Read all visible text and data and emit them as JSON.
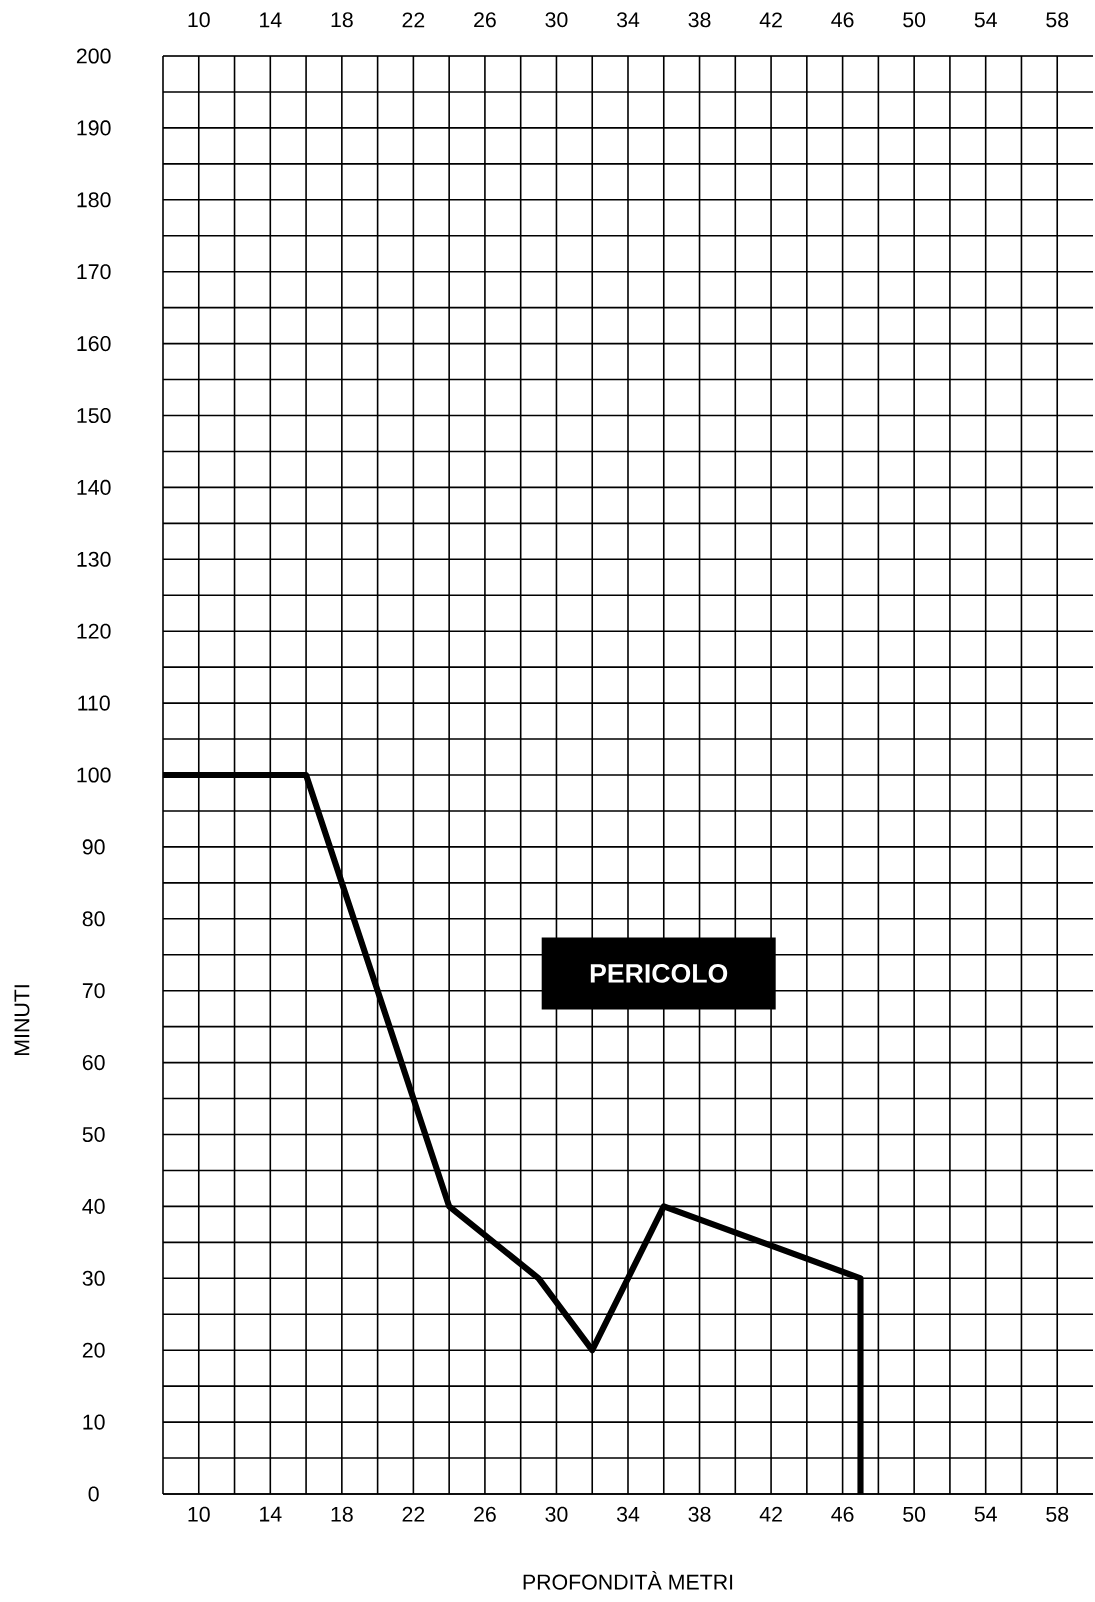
{
  "chart_data": {
    "type": "line",
    "xlabel": "PROFONDITÀ METRI",
    "ylabel": "MINUTI",
    "x": [
      8,
      16,
      24,
      29,
      32,
      36,
      47,
      47
    ],
    "series": [
      {
        "color": "#000000",
        "values": [
          100,
          100,
          40,
          30,
          20,
          40,
          30,
          0
        ]
      }
    ],
    "xlim": [
      8,
      60
    ],
    "ylim": [
      0,
      200
    ],
    "xticks": [
      10,
      14,
      18,
      22,
      26,
      30,
      34,
      38,
      42,
      46,
      50,
      54,
      58
    ],
    "x2lim": [
      8,
      60
    ],
    "x2ticks": [
      10,
      14,
      18,
      22,
      26,
      30,
      34,
      38,
      42,
      46,
      50,
      54,
      58
    ],
    "yticks": [
      0,
      10,
      20,
      30,
      40,
      50,
      60,
      70,
      80,
      90,
      100,
      110,
      120,
      130,
      140,
      150,
      160,
      170,
      180,
      190,
      200
    ],
    "grid": true,
    "annotations": [
      "PERICOLO"
    ]
  }
}
